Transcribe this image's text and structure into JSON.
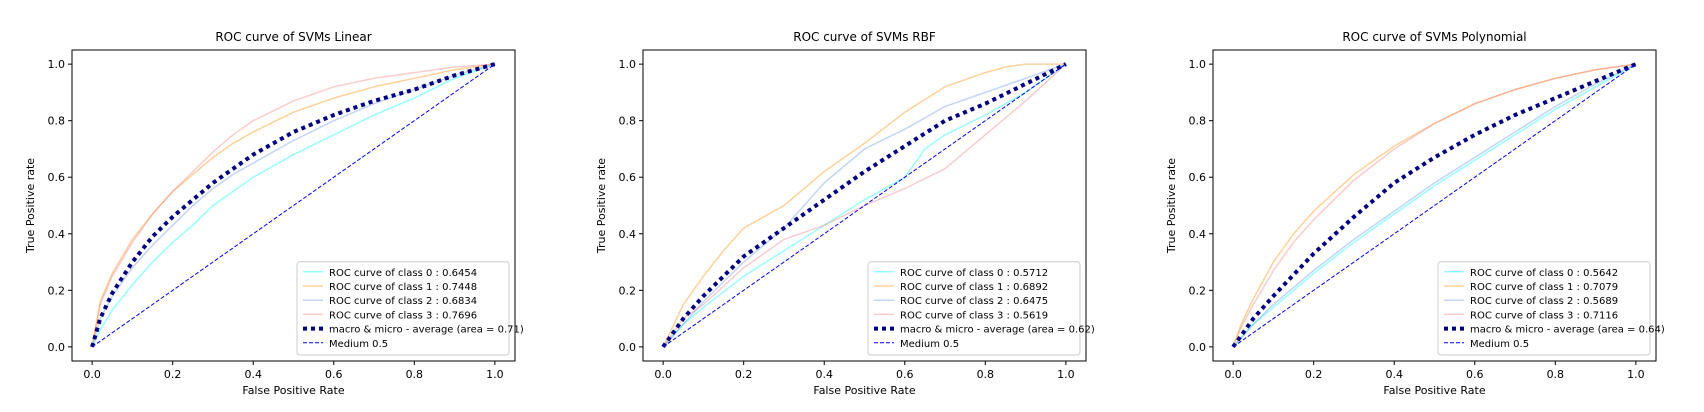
{
  "colors": {
    "class0": "#00ffff",
    "class1": "#ff8c00",
    "class2": "#6495ed",
    "class3": "#f08080",
    "average": "#000080",
    "medium": "#0000ff"
  },
  "chart_data": [
    {
      "type": "line",
      "title": "ROC curve of SVMs Linear",
      "xlabel": "False Positive Rate",
      "ylabel": "True Positive rate",
      "xlim": [
        0,
        1
      ],
      "ylim": [
        0,
        1
      ],
      "xticks": [
        "0.0",
        "0.2",
        "0.4",
        "0.6",
        "0.8",
        "1.0"
      ],
      "yticks": [
        "0.0",
        "0.2",
        "0.4",
        "0.6",
        "0.8",
        "1.0"
      ],
      "legend_position": "lower-right",
      "series": [
        {
          "name": "ROC curve of class 0 : 0.6454",
          "color": "class0",
          "style": "solid",
          "x": [
            0,
            0.02,
            0.05,
            0.1,
            0.15,
            0.2,
            0.25,
            0.3,
            0.35,
            0.4,
            0.5,
            0.6,
            0.7,
            0.8,
            0.9,
            1.0
          ],
          "y": [
            0,
            0.06,
            0.13,
            0.22,
            0.3,
            0.37,
            0.43,
            0.5,
            0.55,
            0.6,
            0.68,
            0.75,
            0.82,
            0.88,
            0.95,
            1.0
          ]
        },
        {
          "name": "ROC curve of class 1 : 0.7448",
          "color": "class1",
          "style": "solid",
          "x": [
            0,
            0.02,
            0.05,
            0.1,
            0.15,
            0.2,
            0.25,
            0.3,
            0.35,
            0.4,
            0.5,
            0.6,
            0.7,
            0.8,
            0.9,
            1.0
          ],
          "y": [
            0,
            0.16,
            0.26,
            0.38,
            0.47,
            0.55,
            0.61,
            0.67,
            0.72,
            0.76,
            0.83,
            0.88,
            0.92,
            0.95,
            0.98,
            1.0
          ]
        },
        {
          "name": "ROC curve of class 2 : 0.6834",
          "color": "class2",
          "style": "solid",
          "x": [
            0,
            0.02,
            0.05,
            0.1,
            0.15,
            0.2,
            0.25,
            0.3,
            0.35,
            0.4,
            0.5,
            0.6,
            0.7,
            0.8,
            0.9,
            1.0
          ],
          "y": [
            0,
            0.1,
            0.18,
            0.28,
            0.36,
            0.43,
            0.5,
            0.56,
            0.61,
            0.65,
            0.73,
            0.8,
            0.86,
            0.91,
            0.96,
            1.0
          ]
        },
        {
          "name": "ROC curve of class 3 : 0.7696",
          "color": "class3",
          "style": "solid",
          "x": [
            0,
            0.02,
            0.05,
            0.1,
            0.15,
            0.2,
            0.25,
            0.3,
            0.35,
            0.4,
            0.5,
            0.6,
            0.7,
            0.8,
            0.9,
            1.0
          ],
          "y": [
            0,
            0.15,
            0.25,
            0.37,
            0.47,
            0.55,
            0.62,
            0.69,
            0.75,
            0.8,
            0.87,
            0.92,
            0.95,
            0.97,
            0.99,
            1.0
          ]
        },
        {
          "name": "macro & micro - average (area = 0.71)",
          "color": "average",
          "style": "dotted",
          "x": [
            0,
            0.02,
            0.05,
            0.1,
            0.15,
            0.2,
            0.25,
            0.3,
            0.35,
            0.4,
            0.5,
            0.6,
            0.7,
            0.8,
            0.9,
            1.0
          ],
          "y": [
            0,
            0.1,
            0.19,
            0.3,
            0.39,
            0.46,
            0.52,
            0.58,
            0.63,
            0.68,
            0.76,
            0.82,
            0.87,
            0.91,
            0.96,
            1.0
          ]
        },
        {
          "name": "Medium 0.5",
          "color": "medium",
          "style": "dashed",
          "x": [
            0,
            1
          ],
          "y": [
            0,
            1
          ]
        }
      ]
    },
    {
      "type": "line",
      "title": "ROC curve of SVMs RBF",
      "xlabel": "False Positive Rate",
      "ylabel": "True Positive rate",
      "xlim": [
        0,
        1
      ],
      "ylim": [
        0,
        1
      ],
      "xticks": [
        "0.0",
        "0.2",
        "0.4",
        "0.6",
        "0.8",
        "1.0"
      ],
      "yticks": [
        "0.0",
        "0.2",
        "0.4",
        "0.6",
        "0.8",
        "1.0"
      ],
      "legend_position": "lower-right",
      "series": [
        {
          "name": "ROC curve of class 0 : 0.5712",
          "color": "class0",
          "style": "solid",
          "x": [
            0,
            0.05,
            0.1,
            0.2,
            0.3,
            0.4,
            0.5,
            0.6,
            0.65,
            0.7,
            0.8,
            0.9,
            1.0
          ],
          "y": [
            0,
            0.08,
            0.14,
            0.25,
            0.34,
            0.43,
            0.52,
            0.6,
            0.7,
            0.75,
            0.82,
            0.9,
            1.0
          ]
        },
        {
          "name": "ROC curve of class 1 : 0.6892",
          "color": "class1",
          "style": "solid",
          "x": [
            0,
            0.05,
            0.1,
            0.15,
            0.2,
            0.3,
            0.4,
            0.5,
            0.6,
            0.7,
            0.8,
            0.85,
            0.9,
            1.0
          ],
          "y": [
            0,
            0.15,
            0.25,
            0.34,
            0.42,
            0.5,
            0.62,
            0.72,
            0.83,
            0.92,
            0.97,
            0.99,
            1.0,
            1.0
          ]
        },
        {
          "name": "ROC curve of class 2 : 0.6475",
          "color": "class2",
          "style": "solid",
          "x": [
            0,
            0.05,
            0.1,
            0.2,
            0.3,
            0.4,
            0.5,
            0.6,
            0.7,
            0.8,
            0.9,
            1.0
          ],
          "y": [
            0,
            0.08,
            0.16,
            0.3,
            0.42,
            0.58,
            0.7,
            0.77,
            0.85,
            0.9,
            0.95,
            1.0
          ]
        },
        {
          "name": "ROC curve of class 3 : 0.5619",
          "color": "class3",
          "style": "solid",
          "x": [
            0,
            0.05,
            0.1,
            0.2,
            0.3,
            0.4,
            0.5,
            0.6,
            0.7,
            0.8,
            0.9,
            1.0
          ],
          "y": [
            0,
            0.1,
            0.15,
            0.28,
            0.38,
            0.43,
            0.5,
            0.56,
            0.63,
            0.75,
            0.87,
            1.0
          ]
        },
        {
          "name": "macro & micro - average (area = 0.62)",
          "color": "average",
          "style": "dotted",
          "x": [
            0,
            0.05,
            0.1,
            0.2,
            0.3,
            0.4,
            0.5,
            0.6,
            0.7,
            0.8,
            0.9,
            1.0
          ],
          "y": [
            0,
            0.1,
            0.18,
            0.32,
            0.42,
            0.52,
            0.62,
            0.71,
            0.8,
            0.86,
            0.93,
            1.0
          ]
        },
        {
          "name": "Medium 0.5",
          "color": "medium",
          "style": "dashed",
          "x": [
            0,
            1
          ],
          "y": [
            0,
            1
          ]
        }
      ]
    },
    {
      "type": "line",
      "title": "ROC curve of SVMs Polynomial",
      "xlabel": "False Positive Rate",
      "ylabel": "True Positive rate",
      "xlim": [
        0,
        1
      ],
      "ylim": [
        0,
        1
      ],
      "xticks": [
        "0.0",
        "0.2",
        "0.4",
        "0.6",
        "0.8",
        "1.0"
      ],
      "yticks": [
        "0.0",
        "0.2",
        "0.4",
        "0.6",
        "0.8",
        "1.0"
      ],
      "legend_position": "lower-right",
      "series": [
        {
          "name": "ROC curve of class 0 : 0.5642",
          "color": "class0",
          "style": "solid",
          "x": [
            0,
            0.05,
            0.1,
            0.2,
            0.3,
            0.4,
            0.5,
            0.6,
            0.7,
            0.8,
            0.9,
            1.0
          ],
          "y": [
            0,
            0.08,
            0.14,
            0.26,
            0.37,
            0.47,
            0.57,
            0.66,
            0.75,
            0.84,
            0.92,
            1.0
          ]
        },
        {
          "name": "ROC curve of class 1 : 0.7079",
          "color": "class1",
          "style": "solid",
          "x": [
            0,
            0.02,
            0.05,
            0.1,
            0.15,
            0.2,
            0.3,
            0.4,
            0.5,
            0.6,
            0.7,
            0.8,
            0.9,
            1.0
          ],
          "y": [
            0,
            0.08,
            0.17,
            0.3,
            0.4,
            0.48,
            0.61,
            0.71,
            0.79,
            0.86,
            0.91,
            0.95,
            0.98,
            1.0
          ]
        },
        {
          "name": "ROC curve of class 2 : 0.5689",
          "color": "class2",
          "style": "solid",
          "x": [
            0,
            0.05,
            0.1,
            0.2,
            0.3,
            0.4,
            0.5,
            0.6,
            0.7,
            0.8,
            0.9,
            1.0
          ],
          "y": [
            0,
            0.08,
            0.15,
            0.27,
            0.38,
            0.48,
            0.58,
            0.67,
            0.76,
            0.85,
            0.93,
            1.0
          ]
        },
        {
          "name": "ROC curve of class 3 : 0.7116",
          "color": "class3",
          "style": "solid",
          "x": [
            0,
            0.02,
            0.05,
            0.1,
            0.15,
            0.2,
            0.3,
            0.4,
            0.5,
            0.6,
            0.7,
            0.8,
            0.9,
            1.0
          ],
          "y": [
            0,
            0.07,
            0.15,
            0.27,
            0.37,
            0.45,
            0.59,
            0.7,
            0.79,
            0.86,
            0.91,
            0.95,
            0.98,
            1.0
          ]
        },
        {
          "name": "macro & micro - average (area = 0.64)",
          "color": "average",
          "style": "dotted",
          "x": [
            0,
            0.05,
            0.1,
            0.2,
            0.3,
            0.4,
            0.5,
            0.6,
            0.7,
            0.8,
            0.9,
            1.0
          ],
          "y": [
            0,
            0.1,
            0.18,
            0.33,
            0.46,
            0.58,
            0.67,
            0.75,
            0.82,
            0.88,
            0.94,
            1.0
          ]
        },
        {
          "name": "Medium 0.5",
          "color": "medium",
          "style": "dashed",
          "x": [
            0,
            1
          ],
          "y": [
            0,
            1
          ]
        }
      ]
    }
  ]
}
